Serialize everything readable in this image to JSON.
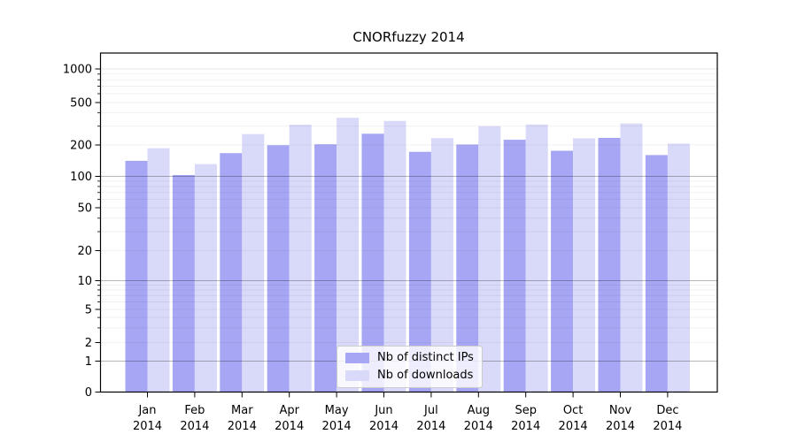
{
  "figure": {
    "title": "CNORfuzzy 2014"
  },
  "chart_data": {
    "type": "bar",
    "title": "CNORfuzzy 2014",
    "categories": [
      "Jan 2014",
      "Feb 2014",
      "Mar 2014",
      "Apr 2014",
      "May 2014",
      "Jun 2014",
      "Jul 2014",
      "Aug 2014",
      "Sep 2014",
      "Oct 2014",
      "Nov 2014",
      "Dec 2014"
    ],
    "series": [
      {
        "name": "Nb of distinct IPs",
        "color": "#a6a6f5",
        "values": [
          141,
          103,
          167,
          199,
          203,
          255,
          172,
          202,
          224,
          176,
          233,
          160
        ]
      },
      {
        "name": "Nb of downloads",
        "color": "#d9d9f9",
        "values": [
          186,
          131,
          253,
          310,
          360,
          336,
          232,
          300,
          311,
          231,
          318,
          206
        ]
      }
    ],
    "xlabel": "",
    "ylabel": "",
    "y_scale": "symlog",
    "y_ticks": [
      0,
      1,
      2,
      5,
      10,
      20,
      50,
      100,
      200,
      500,
      1000
    ],
    "ylim": [
      0,
      1400
    ],
    "grid": "both",
    "legend_position": "lower center",
    "colors": {
      "major_grid": "rgba(0,0,0,0.28)",
      "top_decade_grid": "rgba(0,0,0,0.10)",
      "minor_grid": "rgba(0,0,0,0.07)",
      "axis": "#000000",
      "background": "#ffffff",
      "tick_label": "#000000"
    }
  }
}
